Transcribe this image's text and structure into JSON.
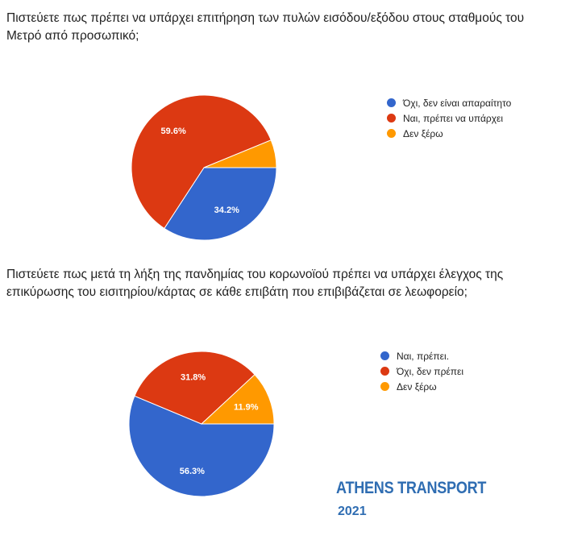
{
  "colors": {
    "blue": "#3366cc",
    "red": "#dc3912",
    "orange": "#ff9900",
    "brand": "#2f6db2"
  },
  "chart_data": [
    {
      "type": "pie",
      "title": "Πιστεύετε πως πρέπει να υπάρχει επιτήρηση των πυλών εισόδου/εξόδου στους σταθμούς του Μετρό από προσωπικό;",
      "labels": [
        "Όχι, δεν είναι απαραίτητο",
        "Ναι, πρέπει να υπάρχει",
        "Δεν ξέρω"
      ],
      "values": [
        34.2,
        59.6,
        6.2
      ],
      "value_labels": [
        "34.2%",
        "59.6%",
        ""
      ],
      "colors": [
        "#3366cc",
        "#dc3912",
        "#ff9900"
      ],
      "legend": "right"
    },
    {
      "type": "pie",
      "title": "Πιστεύετε πως μετά τη λήξη της πανδημίας του κορωνοϊού πρέπει να υπάρχει έλεγχος της επικύρωσης του εισιτηρίου/κάρτας σε κάθε επιβάτη που επιβιβάζεται σε λεωφορείο;",
      "labels": [
        "Ναι, πρέπει.",
        "Όχι, δεν πρέπει",
        "Δεν ξέρω"
      ],
      "values": [
        56.3,
        31.8,
        11.9
      ],
      "value_labels": [
        "56.3%",
        "31.8%",
        "11.9%"
      ],
      "colors": [
        "#3366cc",
        "#dc3912",
        "#ff9900"
      ],
      "legend": "right"
    }
  ],
  "branding": {
    "name": "ATHENS TRANSPORT",
    "year": "2021"
  }
}
